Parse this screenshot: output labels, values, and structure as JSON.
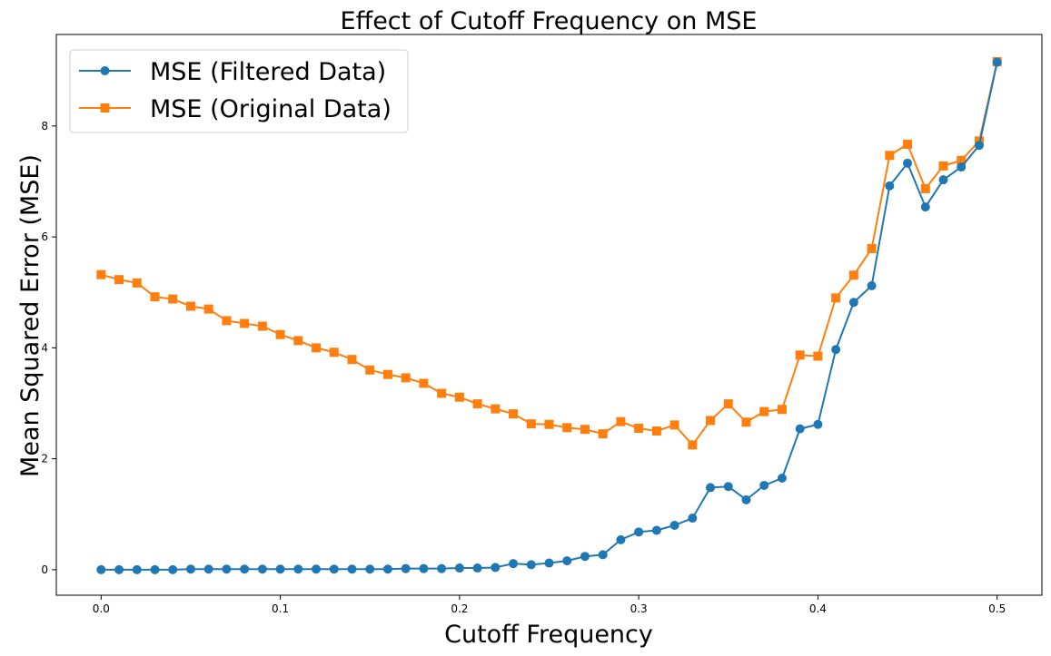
{
  "chart_data": {
    "type": "line",
    "title": "Effect of Cutoff Frequency on MSE",
    "xlabel": "Cutoff Frequency",
    "ylabel": "Mean Squared Error (MSE)",
    "xlim": [
      -0.025,
      0.525
    ],
    "ylim": [
      -0.46,
      9.65
    ],
    "xticks": [
      0.0,
      0.1,
      0.2,
      0.3,
      0.4,
      0.5
    ],
    "xtick_labels": [
      "0.0",
      "0.1",
      "0.2",
      "0.3",
      "0.4",
      "0.5"
    ],
    "yticks": [
      0,
      2,
      4,
      6,
      8
    ],
    "ytick_labels": [
      "0",
      "2",
      "4",
      "6",
      "8"
    ],
    "grid": false,
    "legend_position": "top-left",
    "x": [
      0.0,
      0.01,
      0.02,
      0.03,
      0.04,
      0.05,
      0.06,
      0.07,
      0.08,
      0.09,
      0.1,
      0.11,
      0.12,
      0.13,
      0.14,
      0.15,
      0.16,
      0.17,
      0.18,
      0.19,
      0.2,
      0.21,
      0.22,
      0.23,
      0.24,
      0.25,
      0.26,
      0.27,
      0.28,
      0.29,
      0.3,
      0.31,
      0.32,
      0.33,
      0.34,
      0.35,
      0.36,
      0.37,
      0.38,
      0.39,
      0.4,
      0.41,
      0.42,
      0.43,
      0.44,
      0.45,
      0.46,
      0.47,
      0.48,
      0.49,
      0.5
    ],
    "series": [
      {
        "name": "MSE (Filtered Data)",
        "color": "#1f77b4",
        "marker": "circle",
        "values": [
          0.0,
          0.0,
          0.0,
          0.0,
          0.0,
          0.01,
          0.01,
          0.01,
          0.01,
          0.01,
          0.01,
          0.01,
          0.01,
          0.01,
          0.01,
          0.01,
          0.01,
          0.02,
          0.02,
          0.02,
          0.03,
          0.03,
          0.04,
          0.11,
          0.09,
          0.12,
          0.16,
          0.24,
          0.27,
          0.54,
          0.68,
          0.71,
          0.8,
          0.93,
          1.48,
          1.5,
          1.26,
          1.52,
          1.65,
          2.54,
          2.62,
          3.97,
          4.82,
          5.12,
          6.92,
          7.33,
          6.54,
          7.03,
          7.26,
          7.65,
          9.15
        ]
      },
      {
        "name": "MSE (Original Data)",
        "color": "#ff7f0e",
        "marker": "square",
        "values": [
          5.32,
          5.23,
          5.17,
          4.92,
          4.88,
          4.75,
          4.7,
          4.49,
          4.44,
          4.39,
          4.24,
          4.13,
          4.0,
          3.92,
          3.79,
          3.6,
          3.52,
          3.46,
          3.36,
          3.18,
          3.11,
          2.99,
          2.9,
          2.81,
          2.63,
          2.62,
          2.56,
          2.53,
          2.45,
          2.67,
          2.55,
          2.5,
          2.61,
          2.25,
          2.69,
          2.99,
          2.66,
          2.85,
          2.89,
          3.87,
          3.85,
          4.9,
          5.31,
          5.79,
          7.47,
          7.67,
          6.87,
          7.28,
          7.38,
          7.73,
          9.16
        ]
      }
    ]
  }
}
